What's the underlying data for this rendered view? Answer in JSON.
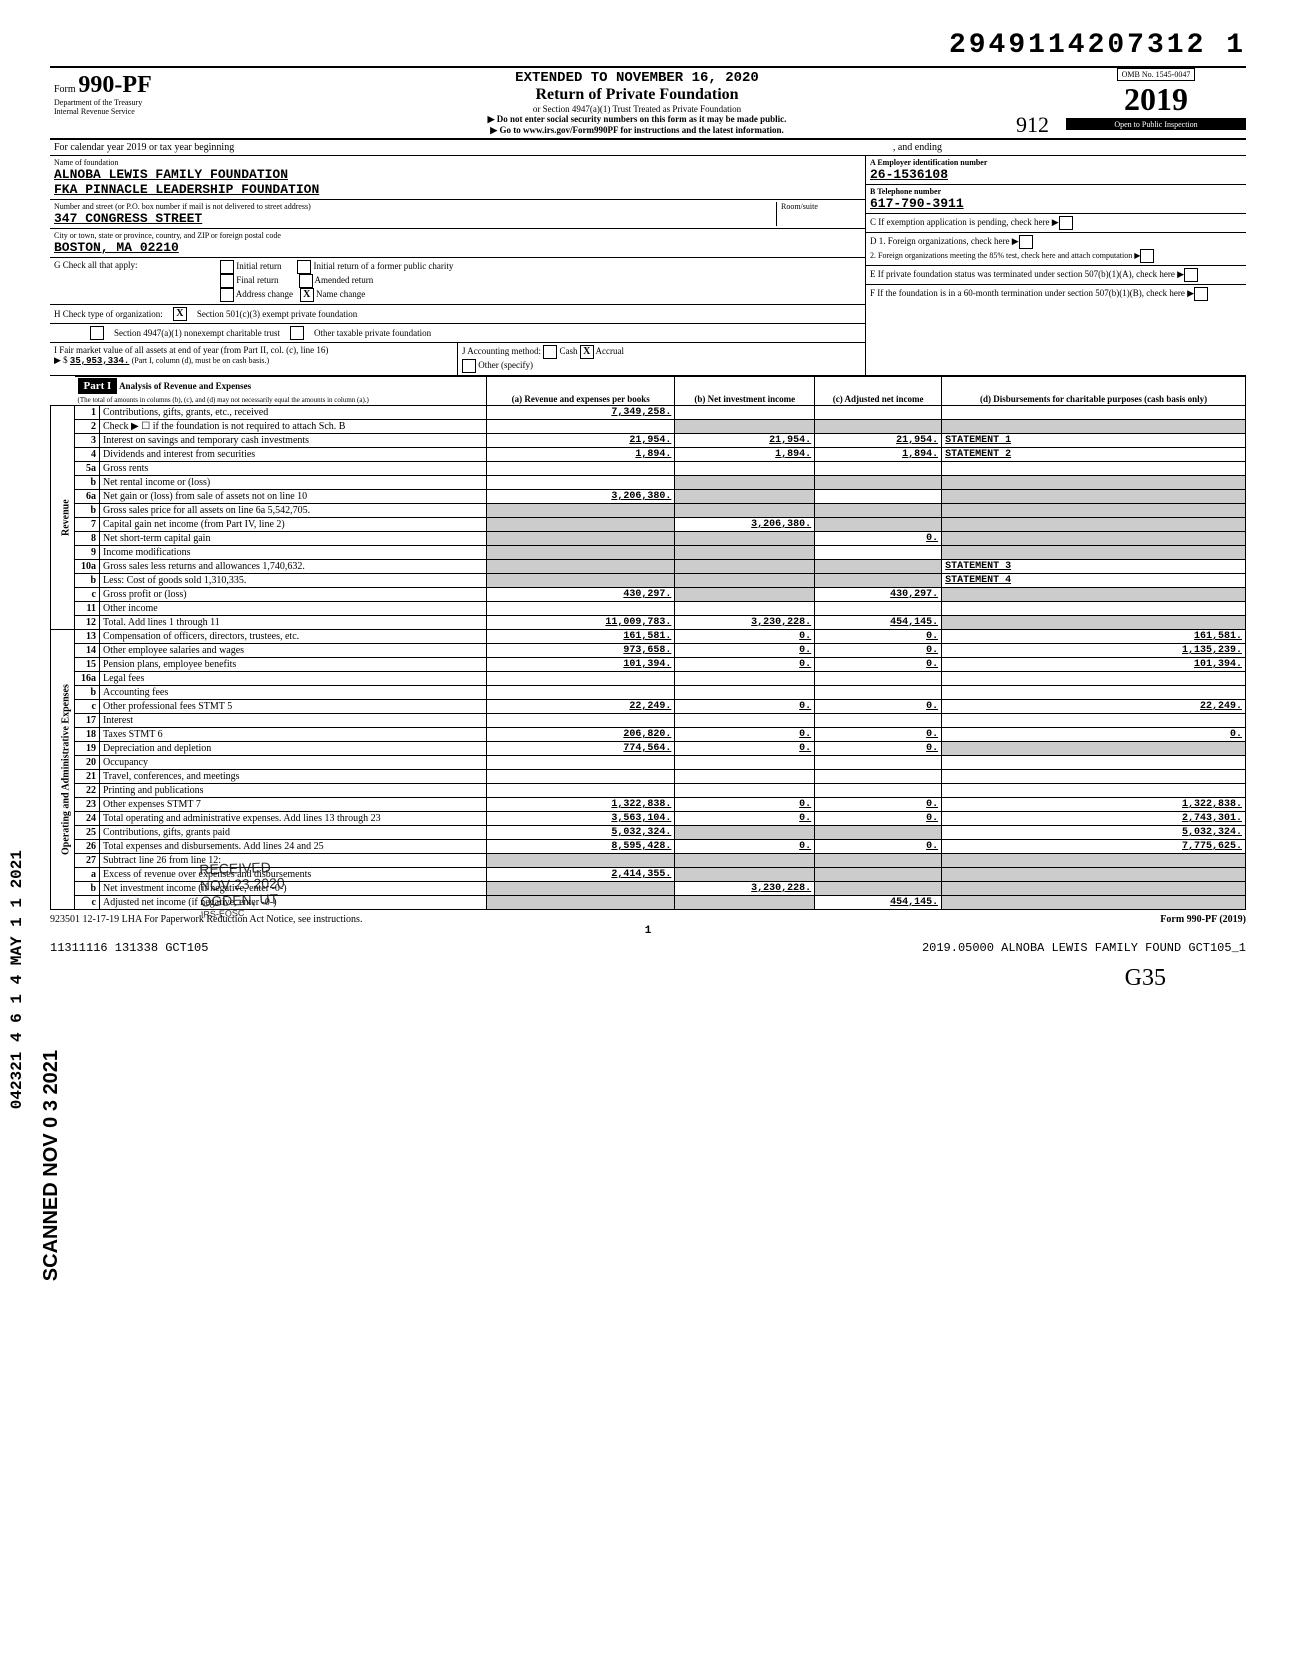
{
  "doc_number": "2949114207312 1",
  "extended_to": "EXTENDED TO NOVEMBER 16, 2020",
  "form": {
    "prefix": "Form",
    "number": "990-PF",
    "dept1": "Department of the Treasury",
    "dept2": "Internal Revenue Service",
    "title": "Return of Private Foundation",
    "subtitle": "or Section 4947(a)(1) Trust Treated as Private Foundation",
    "note1": "▶ Do not enter social security numbers on this form as it may be made public.",
    "note2": "▶ Go to www.irs.gov/Form990PF for instructions and the latest information.",
    "omb": "OMB No. 1545-0047",
    "year": "2019",
    "inspection": "Open to Public Inspection",
    "handwritten_code": "912"
  },
  "calendar": {
    "label": "For calendar year 2019 or tax year beginning",
    "ending": ", and ending"
  },
  "foundation": {
    "name_label": "Name of foundation",
    "name1": "ALNOBA LEWIS FAMILY FOUNDATION",
    "name2": "FKA PINNACLE LEADERSHIP FOUNDATION",
    "addr_label": "Number and street (or P.O. box number if mail is not delivered to street address)",
    "addr": "347 CONGRESS STREET",
    "room_label": "Room/suite",
    "city_label": "City or town, state or province, country, and ZIP or foreign postal code",
    "city": "BOSTON, MA   02210"
  },
  "boxA": {
    "label": "A Employer identification number",
    "val": "26-1536108"
  },
  "boxB": {
    "label": "B Telephone number",
    "val": "617-790-3911"
  },
  "boxC": {
    "label": "C If exemption application is pending, check here"
  },
  "boxD": {
    "l1": "D 1. Foreign organizations, check here",
    "l2": "2. Foreign organizations meeting the 85% test, check here and attach computation"
  },
  "boxE": {
    "label": "E If private foundation status was terminated under section 507(b)(1)(A), check here"
  },
  "boxF": {
    "label": "F If the foundation is in a 60-month termination under section 507(b)(1)(B), check here"
  },
  "G": {
    "label": "G  Check all that apply:",
    "opts": [
      "Initial return",
      "Final return",
      "Address change",
      "Initial return of a former public charity",
      "Amended return",
      "Name change"
    ],
    "checked_name_change": "X"
  },
  "H": {
    "label": "H  Check type of organization:",
    "opt1": "Section 501(c)(3) exempt private foundation",
    "opt1_checked": "X",
    "opt2": "Section 4947(a)(1) nonexempt charitable trust",
    "opt3": "Other taxable private foundation"
  },
  "I": {
    "label": "I  Fair market value of all assets at end of year (from Part II, col. (c), line 16)",
    "arrow": "▶ $",
    "val": "35,953,334.",
    "note": "(Part I, column (d), must be on cash basis.)"
  },
  "J": {
    "label": "J  Accounting method:",
    "cash": "Cash",
    "accrual": "Accrual",
    "accrual_checked": "X",
    "other": "Other (specify)"
  },
  "part1": {
    "header": "Part I",
    "title": "Analysis of Revenue and Expenses",
    "sub": "(The total of amounts in columns (b), (c), and (d) may not necessarily equal the amounts in column (a).)",
    "cols": {
      "a": "(a) Revenue and expenses per books",
      "b": "(b) Net investment income",
      "c": "(c) Adjusted net income",
      "d": "(d) Disbursements for charitable purposes (cash basis only)"
    }
  },
  "side_labels": {
    "revenue": "Revenue",
    "expenses": "Operating and Administrative Expenses"
  },
  "rows": [
    {
      "n": "1",
      "label": "Contributions, gifts, grants, etc., received",
      "a": "7,349,258.",
      "b": "",
      "c": "",
      "d": ""
    },
    {
      "n": "2",
      "label": "Check ▶ ☐ if the foundation is not required to attach Sch. B",
      "a": "",
      "b": "",
      "c": "",
      "d": "",
      "shade_bcd": true
    },
    {
      "n": "3",
      "label": "Interest on savings and temporary cash investments",
      "a": "21,954.",
      "b": "21,954.",
      "c": "21,954.",
      "d": "STATEMENT 1"
    },
    {
      "n": "4",
      "label": "Dividends and interest from securities",
      "a": "1,894.",
      "b": "1,894.",
      "c": "1,894.",
      "d": "STATEMENT 2"
    },
    {
      "n": "5a",
      "label": "Gross rents",
      "a": "",
      "b": "",
      "c": "",
      "d": ""
    },
    {
      "n": "b",
      "label": "Net rental income or (loss)",
      "a": "",
      "b": "",
      "c": "",
      "d": "",
      "shade_bcd": true
    },
    {
      "n": "6a",
      "label": "Net gain or (loss) from sale of assets not on line 10",
      "a": "3,206,380.",
      "b": "",
      "c": "",
      "d": "",
      "shade_bd": true
    },
    {
      "n": "b",
      "label": "Gross sales price for all assets on line 6a   5,542,705.",
      "a": "",
      "b": "",
      "c": "",
      "d": "",
      "shade_all": true
    },
    {
      "n": "7",
      "label": "Capital gain net income (from Part IV, line 2)",
      "a": "",
      "b": "3,206,380.",
      "c": "",
      "d": "",
      "shade_acd": true
    },
    {
      "n": "8",
      "label": "Net short-term capital gain",
      "a": "",
      "b": "",
      "c": "0.",
      "d": "",
      "shade_abd": true
    },
    {
      "n": "9",
      "label": "Income modifications",
      "a": "",
      "b": "",
      "c": "",
      "d": "",
      "shade_abd": true
    },
    {
      "n": "10a",
      "label": "Gross sales less returns and allowances   1,740,632.",
      "a": "",
      "b": "",
      "c": "",
      "d": "STATEMENT 3",
      "shade_abc": true
    },
    {
      "n": "b",
      "label": "Less: Cost of goods sold   1,310,335.",
      "a": "",
      "b": "",
      "c": "",
      "d": "STATEMENT 4",
      "shade_abc": true
    },
    {
      "n": "c",
      "label": "Gross profit or (loss)",
      "a": "430,297.",
      "b": "",
      "c": "430,297.",
      "d": "",
      "shade_bd": true
    },
    {
      "n": "11",
      "label": "Other income",
      "a": "",
      "b": "",
      "c": "",
      "d": ""
    },
    {
      "n": "12",
      "label": "Total. Add lines 1 through 11",
      "a": "11,009,783.",
      "b": "3,230,228.",
      "c": "454,145.",
      "d": "",
      "shade_d": true
    },
    {
      "n": "13",
      "label": "Compensation of officers, directors, trustees, etc.",
      "a": "161,581.",
      "b": "0.",
      "c": "0.",
      "d": "161,581."
    },
    {
      "n": "14",
      "label": "Other employee salaries and wages",
      "a": "973,658.",
      "b": "0.",
      "c": "0.",
      "d": "1,135,239."
    },
    {
      "n": "15",
      "label": "Pension plans, employee benefits",
      "a": "101,394.",
      "b": "0.",
      "c": "0.",
      "d": "101,394."
    },
    {
      "n": "16a",
      "label": "Legal fees",
      "a": "",
      "b": "",
      "c": "",
      "d": ""
    },
    {
      "n": "b",
      "label": "Accounting fees",
      "a": "",
      "b": "",
      "c": "",
      "d": ""
    },
    {
      "n": "c",
      "label": "Other professional fees   STMT 5",
      "a": "22,249.",
      "b": "0.",
      "c": "0.",
      "d": "22,249."
    },
    {
      "n": "17",
      "label": "Interest",
      "a": "",
      "b": "",
      "c": "",
      "d": ""
    },
    {
      "n": "18",
      "label": "Taxes         STMT 6",
      "a": "206,820.",
      "b": "0.",
      "c": "0.",
      "d": "0."
    },
    {
      "n": "19",
      "label": "Depreciation and depletion",
      "a": "774,564.",
      "b": "0.",
      "c": "0.",
      "d": "",
      "shade_d": true
    },
    {
      "n": "20",
      "label": "Occupancy",
      "a": "",
      "b": "",
      "c": "",
      "d": ""
    },
    {
      "n": "21",
      "label": "Travel, conferences, and meetings",
      "a": "",
      "b": "",
      "c": "",
      "d": ""
    },
    {
      "n": "22",
      "label": "Printing and publications",
      "a": "",
      "b": "",
      "c": "",
      "d": ""
    },
    {
      "n": "23",
      "label": "Other expenses         STMT 7",
      "a": "1,322,838.",
      "b": "0.",
      "c": "0.",
      "d": "1,322,838."
    },
    {
      "n": "24",
      "label": "Total operating and administrative expenses. Add lines 13 through 23",
      "a": "3,563,104.",
      "b": "0.",
      "c": "0.",
      "d": "2,743,301."
    },
    {
      "n": "25",
      "label": "Contributions, gifts, grants paid",
      "a": "5,032,324.",
      "b": "",
      "c": "",
      "d": "5,032,324.",
      "shade_bc": true
    },
    {
      "n": "26",
      "label": "Total expenses and disbursements. Add lines 24 and 25",
      "a": "8,595,428.",
      "b": "0.",
      "c": "0.",
      "d": "7,775,625."
    },
    {
      "n": "27",
      "label": "Subtract line 26 from line 12:",
      "a": "",
      "b": "",
      "c": "",
      "d": "",
      "shade_all": true
    },
    {
      "n": "a",
      "label": "Excess of revenue over expenses and disbursements",
      "a": "2,414,355.",
      "b": "",
      "c": "",
      "d": "",
      "shade_bcd": true
    },
    {
      "n": "b",
      "label": "Net investment income (if negative, enter -0-)",
      "a": "",
      "b": "3,230,228.",
      "c": "",
      "d": "",
      "shade_acd": true
    },
    {
      "n": "c",
      "label": "Adjusted net income (if negative, enter -0-)",
      "a": "",
      "b": "",
      "c": "454,145.",
      "d": "",
      "shade_abd": true
    }
  ],
  "footer": {
    "left": "923501 12-17-19   LHA  For Paperwork Reduction Act Notice, see instructions.",
    "right": "Form 990-PF (2019)",
    "page": "1",
    "bottom_left": "11311116 131338 GCT105",
    "bottom_right": "2019.05000 ALNOBA LEWIS FAMILY FOUND GCT105_1"
  },
  "side_barcode": "042321 4 6 1 4 MAY 1 1 2021",
  "scanned_label": "SCANNED NOV 0 3 2021",
  "received": {
    "l1": "RECEIVED",
    "l2": "NOV 23 2020",
    "l3": "OGDEN, UT",
    "l4": "IRS-EOSC"
  },
  "hand_page": "G35"
}
